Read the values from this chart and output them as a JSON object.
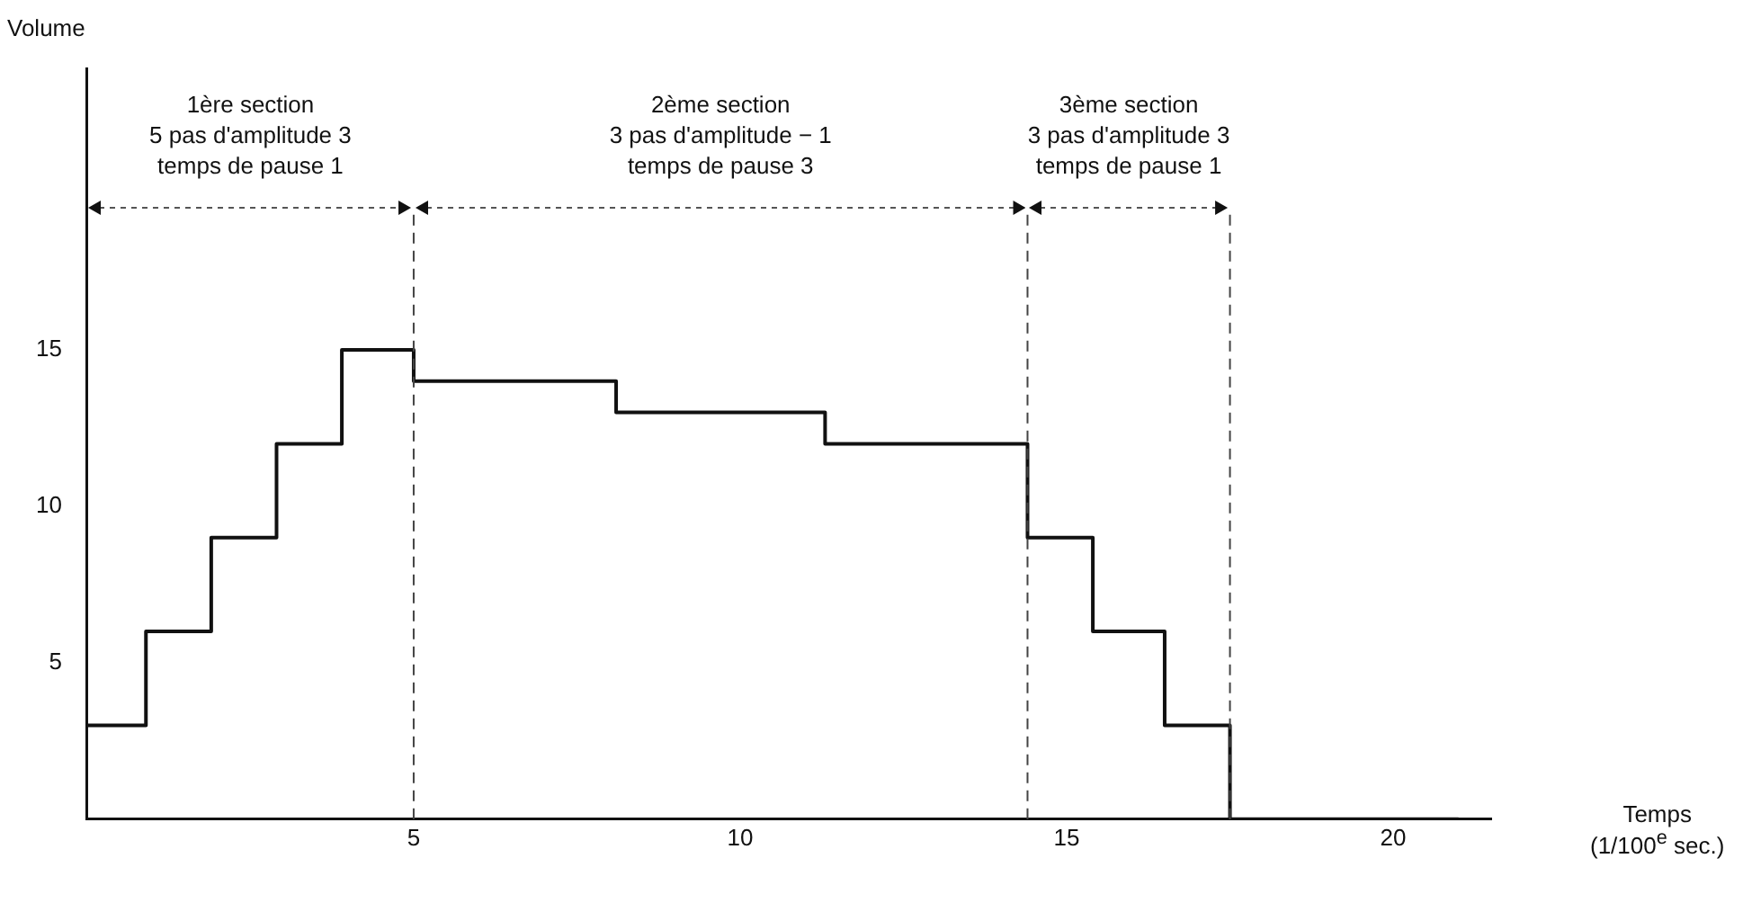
{
  "chart_data": {
    "type": "step",
    "xlabel": "Temps\n(1/100$^{e}$ sec.)",
    "ylabel": "Volume",
    "x": [
      0,
      0.9,
      1.9,
      2.9,
      3.9,
      5,
      8.1,
      11.3,
      14.4,
      15.4,
      16.5,
      17.5,
      21
    ],
    "values": [
      3,
      6,
      9,
      12,
      15,
      14,
      13,
      12,
      9,
      6,
      3,
      0,
      0
    ],
    "color": "#111111",
    "xlim": [
      0,
      21.5
    ],
    "ylim": [
      0,
      24
    ],
    "xticks": [
      5,
      10,
      15,
      20
    ],
    "yticks": [
      5,
      10,
      15
    ],
    "grid": false,
    "legend": false,
    "marker": "none",
    "line_style": "solid",
    "ref_lines": [
      {
        "axis": "x",
        "value": 5,
        "line_style": "dashed"
      },
      {
        "axis": "x",
        "value": 14.4,
        "line_style": "dashed"
      },
      {
        "axis": "x",
        "value": 17.5,
        "line_style": "dashed"
      }
    ],
    "annotations": [
      "1ère section\n5 pas d'amplitude 3\ntemps de pause 1",
      "2ème section\n3 pas d'amplitude − 1\ntemps de pause 3",
      "3ème section\n3 pas d'amplitude 3\ntemps de pause 1"
    ]
  }
}
